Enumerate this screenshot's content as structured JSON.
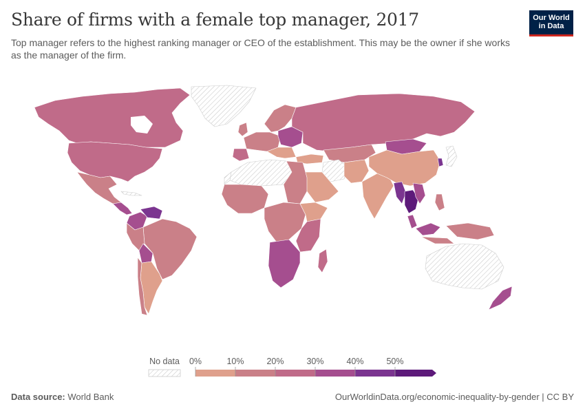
{
  "title": "Share of firms with a female top manager, 2017",
  "subtitle": "Top manager refers to the highest ranking manager or CEO of the establishment. This may be the owner if she works as the manager of the firm.",
  "logo": {
    "line1": "Our World",
    "line2": "in Data"
  },
  "legend": {
    "no_data_label": "No data",
    "ticks": [
      "0%",
      "10%",
      "20%",
      "30%",
      "40%",
      "50%"
    ],
    "bins": [
      {
        "range": "0-10%",
        "color": "#dfa08c"
      },
      {
        "range": "10-20%",
        "color": "#ca8088"
      },
      {
        "range": "20-30%",
        "color": "#c06b89"
      },
      {
        "range": "30-40%",
        "color": "#a54e8f"
      },
      {
        "range": "40-50%",
        "color": "#7b3590"
      },
      {
        "range": "50%+",
        "color": "#5d1a7a"
      }
    ]
  },
  "footer": {
    "source_label": "Data source:",
    "source_value": "World Bank",
    "url": "OurWorldinData.org/economic-inequality-by-gender | CC BY"
  },
  "colors": {
    "title": "#373737",
    "text": "#5b5b5b",
    "logo_bg": "#002147",
    "logo_accent": "#ce261e",
    "no_data_hatch": "#cccccc"
  }
}
